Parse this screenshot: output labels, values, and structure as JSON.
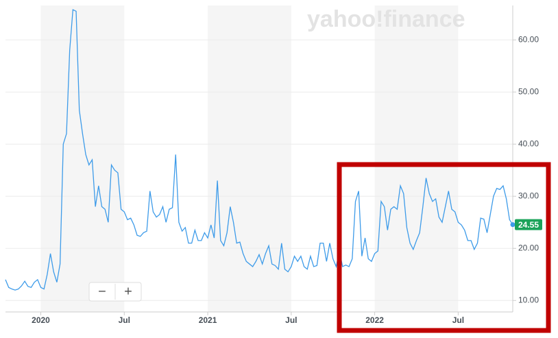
{
  "watermark": "yahoo!finance",
  "controls": [
    "−",
    "+"
  ],
  "chart_data": {
    "type": "line",
    "values": [
      14,
      12.5,
      12.2,
      12,
      12.2,
      12.8,
      13.7,
      12.7,
      12.5,
      13.5,
      14,
      12.5,
      12.2,
      15,
      19,
      15.5,
      13.5,
      17,
      40,
      42,
      58,
      65.8,
      65.5,
      46.5,
      42,
      38,
      36,
      37,
      28,
      32,
      28,
      27.5,
      25,
      36,
      35,
      34.5,
      27.5,
      27,
      25.5,
      25.8,
      24.5,
      22.5,
      22.3,
      23,
      23.3,
      31,
      27,
      26,
      26.5,
      28,
      25,
      27.5,
      27.8,
      38,
      25,
      23.3,
      24,
      21,
      21,
      23.5,
      21.5,
      21.5,
      23,
      22,
      24.5,
      22,
      33,
      21.5,
      20.5,
      23,
      28,
      25,
      21,
      21.2,
      19,
      17.5,
      17,
      16.5,
      17.5,
      18.8,
      17,
      19,
      20.5,
      17,
      16.7,
      16,
      21,
      16,
      15.5,
      16.5,
      18.5,
      17.5,
      18.5,
      16.5,
      16,
      18.5,
      16.5,
      16.7,
      21,
      21,
      17.5,
      21,
      18,
      16.5,
      19.5,
      16.5,
      16.8,
      16.5,
      18,
      29,
      31,
      18.5,
      22,
      18,
      17.5,
      19,
      19.5,
      29,
      28,
      23.5,
      27.5,
      28,
      27.5,
      32,
      30.5,
      24,
      21,
      19.8,
      21.5,
      23,
      28,
      33.5,
      30.5,
      29,
      29.5,
      26,
      25,
      28,
      31,
      27.5,
      27,
      25,
      24.5,
      23.5,
      21.5,
      21.5,
      19.8,
      21,
      25.8,
      25.6,
      23,
      26.5,
      30,
      31.5,
      31.3,
      32,
      29.5,
      25.5,
      24.55
    ],
    "color": "#3d9be9",
    "xlim": [
      0,
      158
    ],
    "xticks": [
      {
        "value": 11,
        "label": "2020"
      },
      {
        "value": 37,
        "label": "Jul"
      },
      {
        "value": 63,
        "label": "2021"
      },
      {
        "value": 89,
        "label": "Jul"
      },
      {
        "value": 115,
        "label": "2022"
      },
      {
        "value": 141,
        "label": "Jul"
      }
    ],
    "ylim": [
      7.8,
      66.6
    ],
    "yticks": [
      {
        "value": 10,
        "label": "10.00"
      },
      {
        "value": 20,
        "label": "20.00"
      },
      {
        "value": 30,
        "label": "30.00"
      },
      {
        "value": 40,
        "label": "40.00"
      },
      {
        "value": 50,
        "label": "50.00"
      },
      {
        "value": 60,
        "label": "60.00"
      }
    ],
    "grid": true,
    "current_value": 24.55,
    "current_color": "#1ba35a"
  }
}
